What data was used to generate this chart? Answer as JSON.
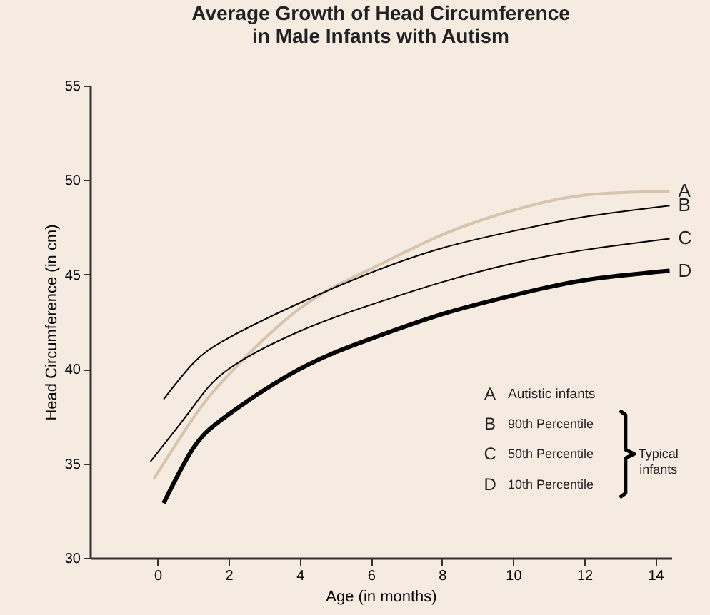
{
  "chart_data": {
    "type": "line",
    "title": [
      "Average Growth of Head Circumference",
      "in Male Infants with Autism"
    ],
    "xlabel": "Age (in months)",
    "ylabel": "Head Circumference (in cm)",
    "xlim": [
      -1.9,
      14.45
    ],
    "xticks": [
      0,
      2,
      4,
      6,
      8,
      10,
      12,
      14
    ],
    "ylim": [
      30,
      55
    ],
    "yticks": [
      30,
      35,
      40,
      45,
      50,
      55
    ],
    "grid": false,
    "legend": "right",
    "marker": "none",
    "line_style": "solid",
    "series": [
      {
        "name": "A",
        "color": "#d6c4ac",
        "x": [
          -0.1,
          1,
          2,
          4,
          6,
          8,
          10,
          12,
          14.4
        ],
        "values": [
          34.2,
          37.4,
          39.7,
          43.2,
          45.3,
          47.1,
          48.4,
          49.2,
          49.4
        ]
      },
      {
        "name": "B",
        "color": "#000000",
        "x": [
          0.17,
          1,
          2,
          4,
          6,
          8,
          10,
          12,
          14.4
        ],
        "values": [
          38.4,
          40.3,
          41.65,
          43.5,
          45.1,
          46.4,
          47.3,
          48.05,
          48.65
        ]
      },
      {
        "name": "C",
        "color": "#000000",
        "x": [
          -0.2,
          1,
          2,
          4,
          6,
          8,
          10,
          12,
          14.4
        ],
        "values": [
          35.1,
          38.0,
          40.0,
          42.0,
          43.4,
          44.6,
          45.6,
          46.3,
          46.9
        ]
      },
      {
        "name": "D",
        "color": "#000000",
        "x": [
          0.17,
          1,
          2,
          4,
          6,
          8,
          10,
          12,
          14.4
        ],
        "values": [
          32.9,
          35.8,
          37.6,
          40.0,
          41.6,
          42.9,
          43.9,
          44.7,
          45.2
        ]
      }
    ],
    "annotations": [
      "Autistic infants",
      "90th Percentile",
      "50th Percentile",
      "10th Percentile",
      "Typical infants"
    ]
  }
}
